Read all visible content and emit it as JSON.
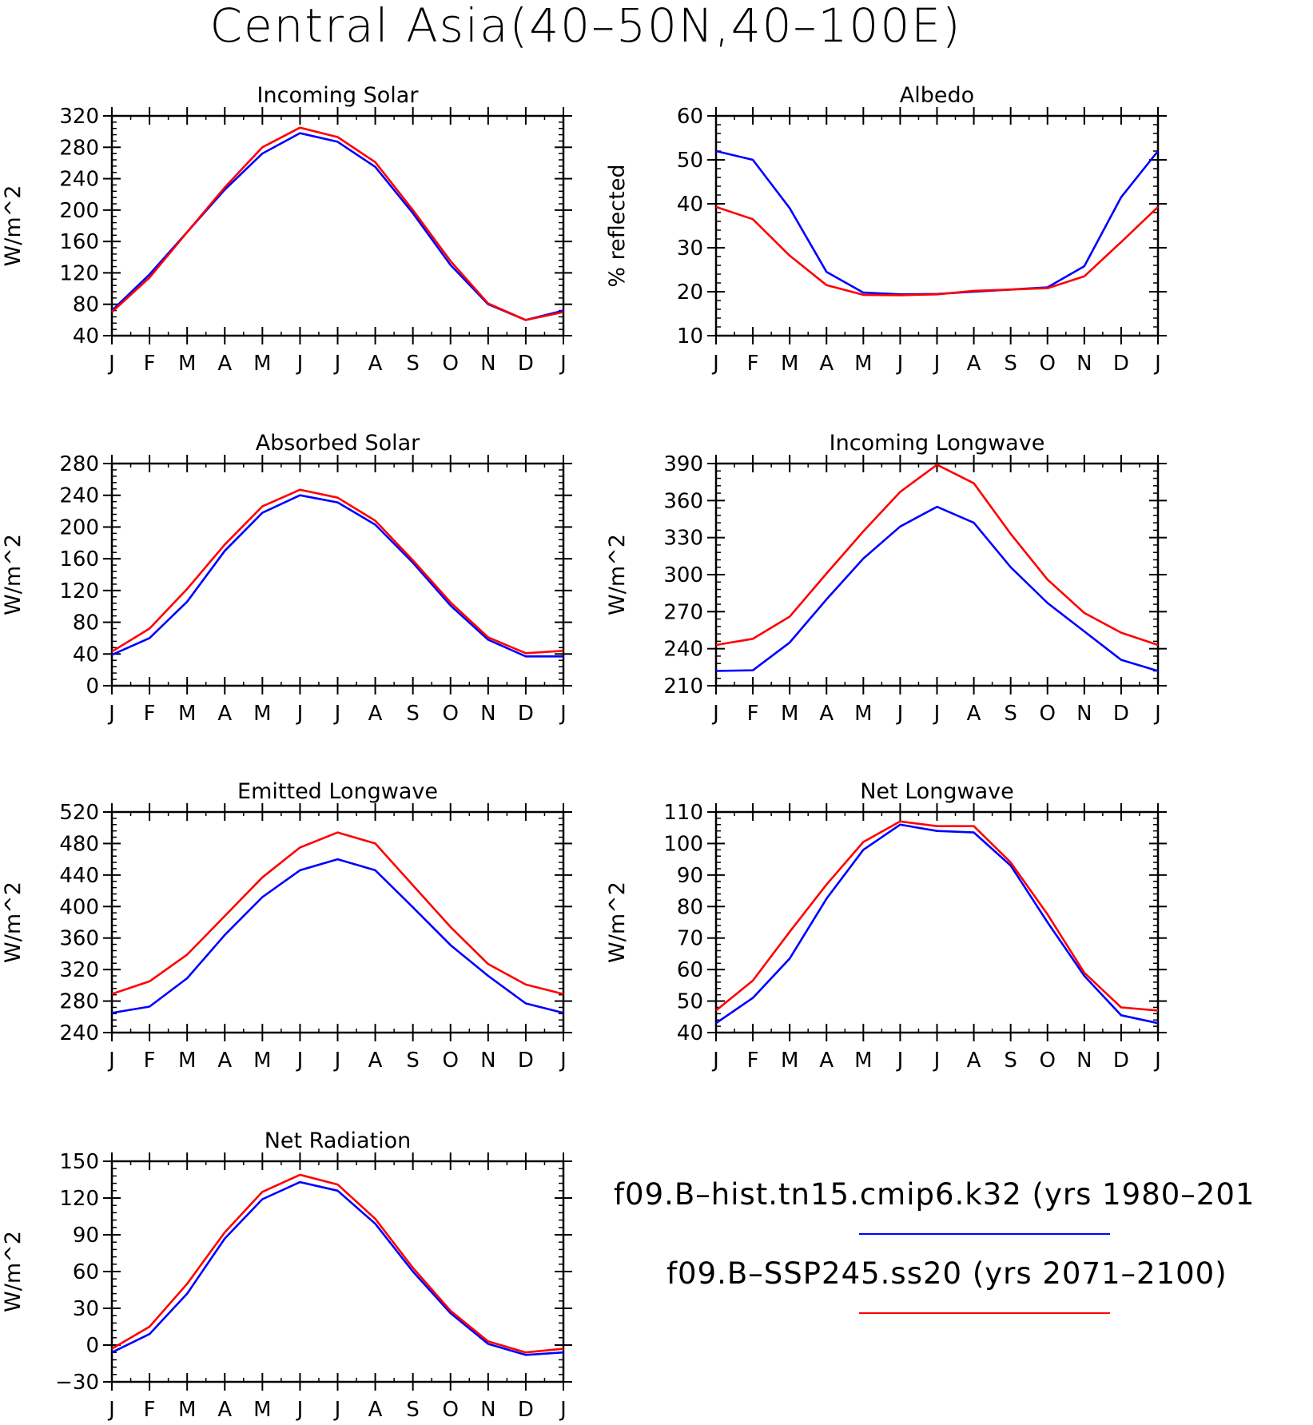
{
  "title": "Central Asia(40–50N,40–100E)",
  "month_labels": [
    "J",
    "F",
    "M",
    "A",
    "M",
    "J",
    "J",
    "A",
    "S",
    "O",
    "N",
    "D",
    "J"
  ],
  "legend": [
    {
      "label": "f09.B–hist.tn15.cmip6.k32 (yrs 1980–201",
      "color": "#0000ff"
    },
    {
      "label": "f09.B–SSP245.ss20 (yrs 2071–2100)",
      "color": "#ff0000"
    }
  ],
  "chart_data": [
    {
      "type": "line",
      "title": "Incoming Solar",
      "ylabel": "W/m^2",
      "ylim": [
        40,
        320
      ],
      "yticks": [
        40,
        80,
        120,
        160,
        200,
        240,
        280,
        320
      ],
      "categories": [
        "J",
        "F",
        "M",
        "A",
        "M",
        "J",
        "J",
        "A",
        "S",
        "O",
        "N",
        "D",
        "J"
      ],
      "series": [
        {
          "color": "#0000ff",
          "values": [
            72,
            118,
            172,
            226,
            272,
            298,
            287,
            255,
            196,
            130,
            80,
            60,
            72
          ]
        },
        {
          "color": "#ff0000",
          "values": [
            70,
            114,
            172,
            229,
            280,
            305,
            293,
            261,
            200,
            135,
            81,
            60,
            70
          ]
        }
      ]
    },
    {
      "type": "line",
      "title": "Albedo",
      "ylabel": "% reflected",
      "ylim": [
        10,
        60
      ],
      "yticks": [
        10,
        20,
        30,
        40,
        50,
        60
      ],
      "categories": [
        "J",
        "F",
        "M",
        "A",
        "M",
        "J",
        "J",
        "A",
        "S",
        "O",
        "N",
        "D",
        "J"
      ],
      "series": [
        {
          "color": "#0000ff",
          "values": [
            52,
            50,
            39,
            24.5,
            19.8,
            19.4,
            19.5,
            20,
            20.5,
            21,
            25.8,
            41.5,
            52
          ]
        },
        {
          "color": "#ff0000",
          "values": [
            39.3,
            36.5,
            28.2,
            21.5,
            19.3,
            19.2,
            19.4,
            20.2,
            20.5,
            20.8,
            23.5,
            31.3,
            39.3
          ]
        }
      ]
    },
    {
      "type": "line",
      "title": "Absorbed Solar",
      "ylabel": "W/m^2",
      "ylim": [
        0,
        280
      ],
      "yticks": [
        0,
        40,
        80,
        120,
        160,
        200,
        240,
        280
      ],
      "categories": [
        "J",
        "F",
        "M",
        "A",
        "M",
        "J",
        "J",
        "A",
        "S",
        "O",
        "N",
        "D",
        "J"
      ],
      "series": [
        {
          "color": "#0000ff",
          "values": [
            39,
            60,
            106,
            170,
            218,
            240,
            231,
            203,
            155,
            101,
            58,
            37,
            37
          ]
        },
        {
          "color": "#ff0000",
          "values": [
            43,
            72,
            122,
            178,
            226,
            247,
            237,
            208,
            158,
            105,
            61,
            41,
            44
          ]
        }
      ]
    },
    {
      "type": "line",
      "title": "Incoming Longwave",
      "ylabel": "W/m^2",
      "ylim": [
        210,
        390
      ],
      "yticks": [
        210,
        240,
        270,
        300,
        330,
        360,
        390
      ],
      "categories": [
        "J",
        "F",
        "M",
        "A",
        "M",
        "J",
        "J",
        "A",
        "S",
        "O",
        "N",
        "D",
        "J"
      ],
      "series": [
        {
          "color": "#0000ff",
          "values": [
            222,
            222.5,
            245,
            280,
            313,
            339,
            355,
            342,
            306,
            277,
            254,
            231,
            222
          ]
        },
        {
          "color": "#ff0000",
          "values": [
            243,
            248,
            266,
            301,
            335,
            367,
            389,
            374,
            333,
            296,
            269,
            253,
            243
          ]
        }
      ]
    },
    {
      "type": "line",
      "title": "Emitted Longwave",
      "ylabel": "W/m^2",
      "ylim": [
        240,
        520
      ],
      "yticks": [
        240,
        280,
        320,
        360,
        400,
        440,
        480,
        520
      ],
      "categories": [
        "J",
        "F",
        "M",
        "A",
        "M",
        "J",
        "J",
        "A",
        "S",
        "O",
        "N",
        "D",
        "J"
      ],
      "series": [
        {
          "color": "#0000ff",
          "values": [
            265,
            273,
            309,
            364,
            412,
            446,
            460,
            446,
            399,
            351,
            312,
            277,
            265
          ]
        },
        {
          "color": "#ff0000",
          "values": [
            289,
            305,
            339,
            388,
            437,
            475,
            494,
            480,
            427,
            374,
            327,
            301,
            289
          ]
        }
      ]
    },
    {
      "type": "line",
      "title": "Net Longwave",
      "ylabel": "W/m^2",
      "ylim": [
        40,
        110
      ],
      "yticks": [
        40,
        50,
        60,
        70,
        80,
        90,
        100,
        110
      ],
      "categories": [
        "J",
        "F",
        "M",
        "A",
        "M",
        "J",
        "J",
        "A",
        "S",
        "O",
        "N",
        "D",
        "J"
      ],
      "series": [
        {
          "color": "#0000ff",
          "values": [
            43,
            51,
            63.5,
            82.5,
            98,
            106,
            104,
            103.5,
            93,
            75,
            58,
            45.5,
            43
          ]
        },
        {
          "color": "#ff0000",
          "values": [
            47,
            56.5,
            72,
            87,
            100.5,
            107,
            105.5,
            105.5,
            94,
            77.5,
            59,
            48,
            47
          ]
        }
      ]
    },
    {
      "type": "line",
      "title": "Net Radiation",
      "ylabel": "W/m^2",
      "ylim": [
        -30,
        150
      ],
      "yticks": [
        -30,
        0,
        30,
        60,
        90,
        120,
        150
      ],
      "categories": [
        "J",
        "F",
        "M",
        "A",
        "M",
        "J",
        "J",
        "A",
        "S",
        "O",
        "N",
        "D",
        "J"
      ],
      "series": [
        {
          "color": "#0000ff",
          "values": [
            -6,
            9,
            42,
            87,
            119,
            133,
            126,
            99,
            60,
            26,
            1,
            -8,
            -6
          ]
        },
        {
          "color": "#ff0000",
          "values": [
            -3,
            15,
            50,
            92,
            125,
            139,
            131,
            103,
            63,
            28,
            3,
            -6,
            -3
          ]
        }
      ]
    }
  ]
}
